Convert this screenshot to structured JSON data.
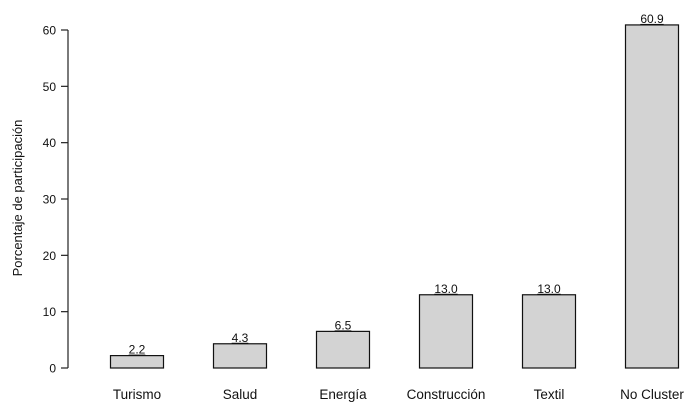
{
  "chart_data": {
    "type": "bar",
    "title": "",
    "xlabel": "",
    "ylabel": "Porcentaje de participación",
    "categories": [
      "Turismo",
      "Salud",
      "Energía",
      "Construcción",
      "Textil",
      "No Cluster"
    ],
    "values": [
      2.2,
      4.3,
      6.5,
      13.0,
      13.0,
      60.9
    ],
    "value_labels": [
      "2.2",
      "4.3",
      "6.5",
      "13.0",
      "13.0",
      "60.9"
    ],
    "ylim": [
      0,
      60
    ],
    "yticks": [
      0,
      10,
      20,
      30,
      40,
      50,
      60
    ],
    "grid": false,
    "legend": "none",
    "bar_color": "#d3d3d3",
    "edge_color": "#111111"
  }
}
